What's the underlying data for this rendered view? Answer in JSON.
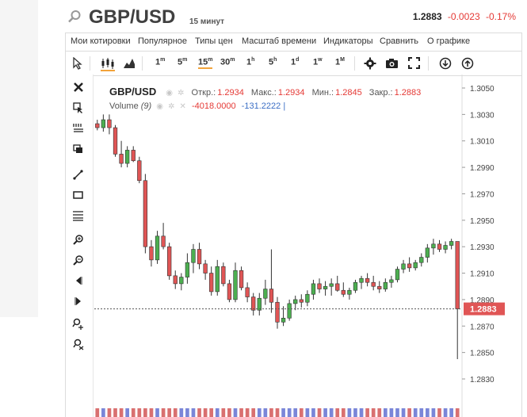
{
  "header": {
    "symbol": "GBP/USD",
    "timeframe_label": "15 минут",
    "last_price": "1.2883",
    "change": "-0.0023",
    "change_pct": "-0.17%"
  },
  "menu": [
    "Мои котировки",
    "Популярное",
    "Типы цен",
    "Масштаб времени",
    "Индикаторы",
    "Сравнить",
    "О графике"
  ],
  "toolbar": {
    "timeframes": [
      {
        "label": "1",
        "sup": "m"
      },
      {
        "label": "5",
        "sup": "m"
      },
      {
        "label": "15",
        "sup": "m",
        "active": true
      },
      {
        "label": "30",
        "sup": "m"
      },
      {
        "label": "1",
        "sup": "h"
      },
      {
        "label": "5",
        "sup": "h"
      },
      {
        "label": "1",
        "sup": "d"
      },
      {
        "label": "1",
        "sup": "w"
      },
      {
        "label": "1",
        "sup": "M"
      }
    ]
  },
  "legend": {
    "symbol": "GBP/USD",
    "open_label": "Откр.:",
    "open": "1.2934",
    "high_label": "Макс.:",
    "high": "1.2934",
    "low_label": "Мин.:",
    "low": "1.2845",
    "close_label": "Закр.:",
    "close": "1.2883",
    "volume_label": "Volume",
    "volume_period": "(9)",
    "volume_value1": "-4018.0000",
    "volume_value2": "-131.2222"
  },
  "price_axis": {
    "ticks": [
      "1.3050",
      "1.3030",
      "1.3010",
      "1.2990",
      "1.2970",
      "1.2950",
      "1.2930",
      "1.2910",
      "1.2890",
      "1.2870",
      "1.2850",
      "1.2830"
    ],
    "current_price_label": "1.2883"
  },
  "colors": {
    "up": "#4caf50",
    "down": "#e05555",
    "accent": "#f2a33a",
    "negative_text": "#e53935"
  },
  "chart_data": {
    "type": "candlestick",
    "ylim": [
      1.2825,
      1.3058
    ],
    "current_price": 1.2883,
    "candles": [
      [
        1.3023,
        1.3026,
        1.3018,
        1.302
      ],
      [
        1.302,
        1.303,
        1.3017,
        1.3026
      ],
      [
        1.3026,
        1.303,
        1.3015,
        1.302
      ],
      [
        1.302,
        1.3022,
        1.2998,
        1.3
      ],
      [
        1.3,
        1.301,
        1.299,
        1.2993
      ],
      [
        1.2993,
        1.3006,
        1.299,
        1.3003
      ],
      [
        1.3003,
        1.3006,
        1.2994,
        1.2995
      ],
      [
        1.2995,
        1.2998,
        1.2978,
        1.298
      ],
      [
        1.298,
        1.2985,
        1.2925,
        1.293
      ],
      [
        1.293,
        1.2935,
        1.2915,
        1.292
      ],
      [
        1.292,
        1.2942,
        1.2917,
        1.2938
      ],
      [
        1.2938,
        1.2948,
        1.2928,
        1.293
      ],
      [
        1.293,
        1.2933,
        1.2905,
        1.2908
      ],
      [
        1.2908,
        1.2912,
        1.2898,
        1.2902
      ],
      [
        1.2902,
        1.291,
        1.2897,
        1.2907
      ],
      [
        1.2907,
        1.2925,
        1.2902,
        1.2918
      ],
      [
        1.2918,
        1.2932,
        1.291,
        1.2928
      ],
      [
        1.2928,
        1.2933,
        1.2913,
        1.2917
      ],
      [
        1.2917,
        1.292,
        1.2905,
        1.291
      ],
      [
        1.291,
        1.2915,
        1.2893,
        1.2896
      ],
      [
        1.2896,
        1.292,
        1.2893,
        1.2915
      ],
      [
        1.2915,
        1.2918,
        1.29,
        1.2902
      ],
      [
        1.2902,
        1.2905,
        1.2888,
        1.289
      ],
      [
        1.289,
        1.2918,
        1.2888,
        1.2912
      ],
      [
        1.2912,
        1.2915,
        1.2897,
        1.2899
      ],
      [
        1.2899,
        1.2903,
        1.2888,
        1.2892
      ],
      [
        1.2892,
        1.2895,
        1.2878,
        1.2882
      ],
      [
        1.2882,
        1.2895,
        1.2878,
        1.2891
      ],
      [
        1.2891,
        1.2905,
        1.2886,
        1.2898
      ],
      [
        1.2898,
        1.2928,
        1.288,
        1.2888
      ],
      [
        1.2888,
        1.2892,
        1.2868,
        1.2873
      ],
      [
        1.2873,
        1.2885,
        1.287,
        1.2876
      ],
      [
        1.2876,
        1.289,
        1.2874,
        1.2887
      ],
      [
        1.2887,
        1.2893,
        1.2882,
        1.289
      ],
      [
        1.289,
        1.2894,
        1.2884,
        1.2888
      ],
      [
        1.2888,
        1.2897,
        1.2885,
        1.2894
      ],
      [
        1.2894,
        1.2905,
        1.289,
        1.2902
      ],
      [
        1.2902,
        1.2906,
        1.2895,
        1.2898
      ],
      [
        1.2898,
        1.2904,
        1.2893,
        1.29
      ],
      [
        1.29,
        1.2906,
        1.2893,
        1.2902
      ],
      [
        1.2902,
        1.2908,
        1.2896,
        1.2897
      ],
      [
        1.2897,
        1.2903,
        1.2892,
        1.2894
      ],
      [
        1.2894,
        1.2899,
        1.289,
        1.2897
      ],
      [
        1.2897,
        1.2905,
        1.2895,
        1.2903
      ],
      [
        1.2903,
        1.2908,
        1.2898,
        1.2906
      ],
      [
        1.2906,
        1.291,
        1.29,
        1.2903
      ],
      [
        1.2903,
        1.2908,
        1.2897,
        1.29
      ],
      [
        1.29,
        1.2904,
        1.2895,
        1.2898
      ],
      [
        1.2898,
        1.2906,
        1.2896,
        1.2903
      ],
      [
        1.2903,
        1.2908,
        1.2899,
        1.2905
      ],
      [
        1.2905,
        1.2915,
        1.2903,
        1.2913
      ],
      [
        1.2913,
        1.292,
        1.291,
        1.2917
      ],
      [
        1.2917,
        1.2922,
        1.2911,
        1.2914
      ],
      [
        1.2914,
        1.292,
        1.2912,
        1.2918
      ],
      [
        1.2918,
        1.2925,
        1.2915,
        1.2922
      ],
      [
        1.2922,
        1.2932,
        1.2918,
        1.2929
      ],
      [
        1.2929,
        1.2936,
        1.2924,
        1.2932
      ],
      [
        1.2932,
        1.2935,
        1.2926,
        1.2928
      ],
      [
        1.2928,
        1.2934,
        1.2925,
        1.2931
      ],
      [
        1.2931,
        1.2936,
        1.2928,
        1.2934
      ],
      [
        1.2934,
        1.2934,
        1.2845,
        1.2883
      ]
    ]
  }
}
